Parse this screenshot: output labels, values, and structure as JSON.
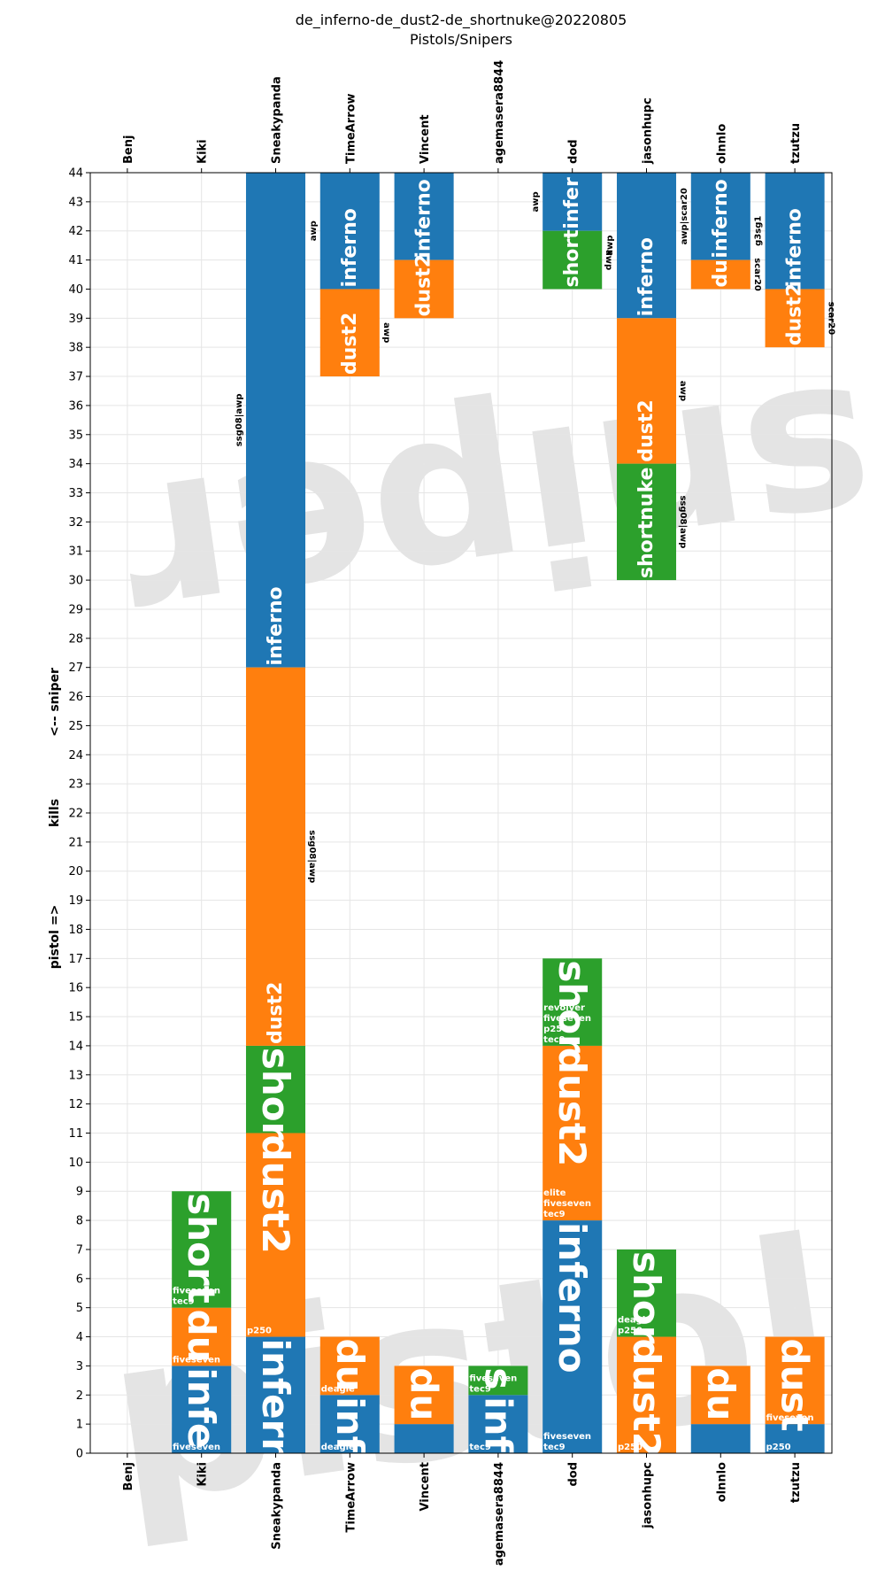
{
  "chart_data": {
    "type": "bar",
    "title": "de_inferno-de_dust2-de_shortnuke@20220805",
    "subtitle": "Pistols/Snipers",
    "ylabel_parts": [
      "pistol =>",
      "kills",
      "<-- sniper"
    ],
    "watermarks": [
      "pistol",
      "sniper"
    ],
    "ylim": [
      0,
      44
    ],
    "yticks": [
      0,
      1,
      2,
      3,
      4,
      5,
      6,
      7,
      8,
      9,
      10,
      11,
      12,
      13,
      14,
      15,
      16,
      17,
      18,
      19,
      20,
      21,
      22,
      23,
      24,
      25,
      26,
      27,
      28,
      29,
      30,
      31,
      32,
      33,
      34,
      35,
      36,
      37,
      38,
      39,
      40,
      41,
      42,
      43,
      44
    ],
    "grid": true,
    "colors": {
      "inferno": "#1f77b4",
      "dust2": "#ff7f0e",
      "shortnuke": "#2ca02c",
      "watermark": "#d9d9d9"
    },
    "players": [
      "Benj",
      "Kiki",
      "Sneakypanda",
      "TimeArrow",
      "Vincent",
      "agemasera8844",
      "dod",
      "jasonhupc",
      "olnnlo",
      "tzutzu"
    ],
    "pistol_segments": [
      {
        "player": "Kiki",
        "map": "inferno",
        "label": "infe",
        "from": 0,
        "to": 3,
        "weapons": [
          "fiveseven"
        ]
      },
      {
        "player": "Kiki",
        "map": "dust2",
        "label": "du",
        "from": 3,
        "to": 5,
        "weapons": [
          "fiveseven"
        ]
      },
      {
        "player": "Kiki",
        "map": "shortnuke",
        "label": "short",
        "from": 5,
        "to": 9,
        "weapons": [
          "fiveseven",
          "tec9"
        ]
      },
      {
        "player": "Sneakypanda",
        "map": "inferno",
        "label": "infern",
        "from": 0,
        "to": 4,
        "weapons": []
      },
      {
        "player": "Sneakypanda",
        "map": "dust2",
        "label": "dust2",
        "from": 4,
        "to": 11,
        "weapons": [
          "p250"
        ]
      },
      {
        "player": "Sneakypanda",
        "map": "shortnuke",
        "label": "shor",
        "from": 11,
        "to": 14,
        "weapons": []
      },
      {
        "player": "TimeArrow",
        "map": "inferno",
        "label": "inf",
        "from": 0,
        "to": 2,
        "weapons": [
          "deagle"
        ]
      },
      {
        "player": "TimeArrow",
        "map": "dust2",
        "label": "du",
        "from": 2,
        "to": 4,
        "weapons": [
          "deagle"
        ]
      },
      {
        "player": "Vincent",
        "map": "inferno",
        "label": "",
        "from": 0,
        "to": 1,
        "weapons": []
      },
      {
        "player": "Vincent",
        "map": "dust2",
        "label": "du",
        "from": 1,
        "to": 3,
        "weapons": []
      },
      {
        "player": "agemasera8844",
        "map": "inferno",
        "label": "inf",
        "from": 0,
        "to": 2,
        "weapons": [
          "tec9"
        ]
      },
      {
        "player": "agemasera8844",
        "map": "shortnuke",
        "label": "s",
        "from": 2,
        "to": 3,
        "weapons": [
          "fiveseven",
          "tec9"
        ]
      },
      {
        "player": "dod",
        "map": "inferno",
        "label": "inferno",
        "from": 0,
        "to": 8,
        "weapons": [
          "fiveseven",
          "tec9"
        ]
      },
      {
        "player": "dod",
        "map": "dust2",
        "label": "dust2",
        "from": 8,
        "to": 14,
        "weapons": [
          "elite",
          "fiveseven",
          "tec9"
        ]
      },
      {
        "player": "dod",
        "map": "shortnuke",
        "label": "shor",
        "from": 14,
        "to": 17,
        "weapons": [
          "revolver",
          "fiveseven",
          "p250",
          "tec9"
        ]
      },
      {
        "player": "jasonhupc",
        "map": "dust2",
        "label": "dust2",
        "from": 0,
        "to": 4,
        "weapons": [
          "p250"
        ]
      },
      {
        "player": "jasonhupc",
        "map": "shortnuke",
        "label": "shor",
        "from": 4,
        "to": 7,
        "weapons": [
          "deagle",
          "p250"
        ]
      },
      {
        "player": "olnnlo",
        "map": "inferno",
        "label": "",
        "from": 0,
        "to": 1,
        "weapons": []
      },
      {
        "player": "olnnlo",
        "map": "dust2",
        "label": "du",
        "from": 1,
        "to": 3,
        "weapons": []
      },
      {
        "player": "tzutzu",
        "map": "inferno",
        "label": "",
        "from": 0,
        "to": 1,
        "weapons": [
          "p250"
        ]
      },
      {
        "player": "tzutzu",
        "map": "dust2",
        "label": "dust",
        "from": 1,
        "to": 4,
        "weapons": [
          "fiveseven"
        ]
      }
    ],
    "sniper_segments": [
      {
        "player": "Sneakypanda",
        "map": "inferno",
        "label": "inferno",
        "kills": 17,
        "weapons": "ssg08|awp"
      },
      {
        "player": "Sneakypanda",
        "map": "dust2",
        "label": "dust2",
        "kills": 13,
        "weapons": "ssg08|awp"
      },
      {
        "player": "TimeArrow",
        "map": "inferno",
        "label": "inferno",
        "kills": 4,
        "weapons": "awp"
      },
      {
        "player": "TimeArrow",
        "map": "dust2",
        "label": "dust2",
        "kills": 3,
        "weapons": "awp"
      },
      {
        "player": "Vincent",
        "map": "inferno",
        "label": "inferno",
        "kills": 3,
        "weapons": ""
      },
      {
        "player": "Vincent",
        "map": "dust2",
        "label": "dust2",
        "kills": 2,
        "weapons": ""
      },
      {
        "player": "dod",
        "map": "inferno",
        "label": "infer",
        "kills": 2,
        "weapons": "awp"
      },
      {
        "player": "dod",
        "map": "shortnuke",
        "label": "short",
        "kills": 2,
        "weapons": "awp"
      },
      {
        "player": "jasonhupc",
        "map": "inferno",
        "label": "inferno",
        "kills": 5,
        "weapons": "awp"
      },
      {
        "player": "jasonhupc",
        "map": "dust2",
        "label": "dust2",
        "kills": 5,
        "weapons": "awp"
      },
      {
        "player": "jasonhupc",
        "map": "shortnuke",
        "label": "shortnuke",
        "kills": 4,
        "weapons": "ssg08|awp"
      },
      {
        "player": "olnnlo",
        "map": "inferno",
        "label": "inferno",
        "kills": 3,
        "weapons": "awp|scar20"
      },
      {
        "player": "olnnlo",
        "map": "dust2",
        "label": "du",
        "kills": 1,
        "weapons": "scar20"
      },
      {
        "player": "tzutzu",
        "map": "inferno",
        "label": "inferno",
        "kills": 4,
        "weapons": "g3sg1"
      },
      {
        "player": "tzutzu",
        "map": "dust2",
        "label": "dust2",
        "kills": 2,
        "weapons": "scar20"
      }
    ]
  }
}
